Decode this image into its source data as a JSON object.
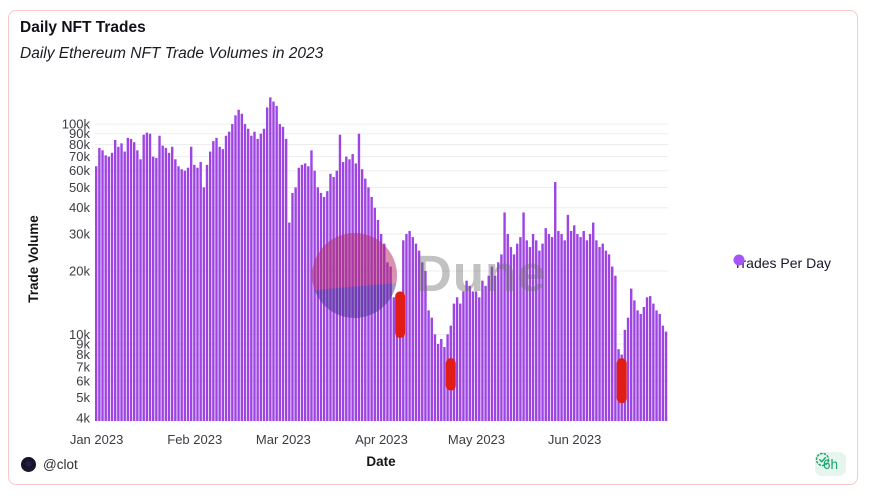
{
  "card": {
    "border_color": "#f6caca",
    "background": "#ffffff"
  },
  "header": {
    "title": "Daily NFT Trades",
    "subtitle": "Daily Ethereum NFT Trade Volumes in 2023"
  },
  "legend": {
    "label": "Trades Per Day",
    "dot_color": "#a855f7"
  },
  "watermark": {
    "text": "Dune",
    "top_color": "rgba(180,40,100,0.5)",
    "bottom_color": "rgba(70,50,140,0.5)",
    "text_color": "rgba(110,110,110,0.42)"
  },
  "footer": {
    "author": "@clot",
    "badge": {
      "label": "6h",
      "color": "#17a36c",
      "background": "#e6f6ee"
    }
  },
  "chart_data": {
    "type": "bar",
    "title": "Daily NFT Trades",
    "subtitle": "Daily Ethereum NFT Trade Volumes in 2023",
    "xlabel": "Date",
    "ylabel": "Trade Volume",
    "series_name": "Trades Per Day",
    "yscale": "log",
    "ylim": [
      3870,
      136000
    ],
    "grid": true,
    "legend_position": "right",
    "bar_color": "#9d44e2",
    "highlight_color": "#e01d17",
    "gridline_color": "#ededed",
    "tick_color": "#3c3c43",
    "yticks": [
      {
        "value": 4000,
        "label": "4k"
      },
      {
        "value": 5000,
        "label": "5k"
      },
      {
        "value": 6000,
        "label": "6k"
      },
      {
        "value": 7000,
        "label": "7k"
      },
      {
        "value": 8000,
        "label": "8k"
      },
      {
        "value": 9000,
        "label": "9k"
      },
      {
        "value": 10000,
        "label": "10k"
      },
      {
        "value": 20000,
        "label": "20k"
      },
      {
        "value": 30000,
        "label": "30k"
      },
      {
        "value": 40000,
        "label": "40k"
      },
      {
        "value": 50000,
        "label": "50k"
      },
      {
        "value": 60000,
        "label": "60k"
      },
      {
        "value": 70000,
        "label": "70k"
      },
      {
        "value": 80000,
        "label": "80k"
      },
      {
        "value": 90000,
        "label": "90k"
      },
      {
        "value": 100000,
        "label": "100k"
      }
    ],
    "xticks": [
      {
        "day_index": 0,
        "label": "Jan 2023"
      },
      {
        "day_index": 31,
        "label": "Feb 2023"
      },
      {
        "day_index": 59,
        "label": "Mar 2023"
      },
      {
        "day_index": 90,
        "label": "Apr 2023"
      },
      {
        "day_index": 120,
        "label": "May 2023"
      },
      {
        "day_index": 151,
        "label": "Jun 2023"
      }
    ],
    "values": [
      63000,
      77000,
      75000,
      71000,
      70000,
      73000,
      84000,
      78000,
      81000,
      74000,
      86000,
      85000,
      82000,
      75000,
      68000,
      89000,
      91000,
      90000,
      70000,
      69000,
      88000,
      79000,
      77000,
      73000,
      78000,
      68000,
      63000,
      61000,
      60000,
      62000,
      78000,
      64000,
      62000,
      66000,
      50000,
      64000,
      74000,
      83000,
      86000,
      78000,
      76000,
      88000,
      92000,
      100000,
      110000,
      117000,
      112000,
      100000,
      95000,
      88000,
      92000,
      85000,
      90000,
      95000,
      120000,
      134000,
      128000,
      122000,
      100000,
      97000,
      85000,
      34000,
      47000,
      50000,
      62000,
      64000,
      65000,
      63000,
      75000,
      60000,
      50000,
      47000,
      45000,
      48000,
      58000,
      56000,
      60000,
      89000,
      66000,
      70000,
      68000,
      72000,
      65000,
      90000,
      61000,
      55000,
      50000,
      45000,
      40000,
      35000,
      30000,
      27000,
      22000,
      21000,
      15000,
      12000,
      14000,
      28000,
      30000,
      31000,
      29000,
      27000,
      25000,
      22000,
      20000,
      13000,
      12000,
      10000,
      9000,
      9500,
      8700,
      10000,
      11000,
      14000,
      15000,
      14000,
      16000,
      18000,
      17000,
      16000,
      16000,
      15000,
      18000,
      17000,
      19000,
      21000,
      19000,
      22000,
      24000,
      38000,
      30000,
      26000,
      24000,
      27000,
      29000,
      38000,
      28000,
      26000,
      30000,
      28000,
      25000,
      27000,
      32000,
      30000,
      29000,
      53000,
      31000,
      30000,
      28000,
      37000,
      31000,
      33000,
      30000,
      29000,
      31000,
      28000,
      30000,
      34000,
      28000,
      26000,
      27000,
      25000,
      24000,
      21000,
      19000,
      8500,
      8000,
      10500,
      12000,
      16500,
      14500,
      13000,
      12500,
      13500,
      15000,
      15200,
      14000,
      13000,
      12500,
      11000,
      10300
    ],
    "highlights": [
      {
        "day_index": 96,
        "value_top": 16000,
        "value_bottom": 9600
      },
      {
        "day_index": 112,
        "value_top": 7700,
        "value_bottom": 5400
      },
      {
        "day_index": 166,
        "value_top": 7700,
        "value_bottom": 4700
      }
    ]
  }
}
